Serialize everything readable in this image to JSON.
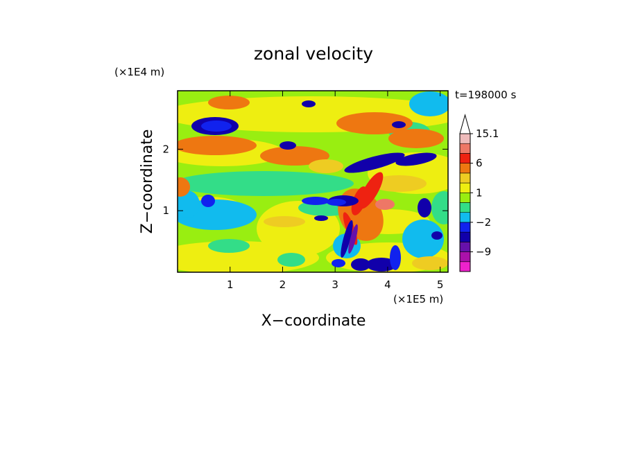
{
  "chart_data": {
    "type": "heatmap",
    "title": "zonal velocity",
    "xlabel": "X−coordinate",
    "ylabel": "Z−coordinate",
    "x_scale_label": "(×1E5 m)",
    "y_scale_label": "(×1E4 m)",
    "time_label": "t=198000 s",
    "xlim": [
      0,
      5.15
    ],
    "ylim": [
      0,
      2.95
    ],
    "x_ticks": [
      {
        "value": 1,
        "label": "1"
      },
      {
        "value": 2,
        "label": "2"
      },
      {
        "value": 3,
        "label": "3"
      },
      {
        "value": 4,
        "label": "4"
      },
      {
        "value": 5,
        "label": "5"
      }
    ],
    "y_ticks": [
      {
        "value": 1,
        "label": "1"
      },
      {
        "value": 2,
        "label": "2"
      }
    ],
    "colorbar": {
      "levels": [
        {
          "lower": -16,
          "upper": -12,
          "color": "#ee22cc"
        },
        {
          "lower": -12,
          "upper": -9,
          "color": "#aa11aa"
        },
        {
          "lower": -9,
          "upper": -6,
          "color": "#6611aa"
        },
        {
          "lower": -6,
          "upper": -4,
          "color": "#1100aa"
        },
        {
          "lower": -4,
          "upper": -2,
          "color": "#1122ee"
        },
        {
          "lower": -2,
          "upper": -1,
          "color": "#11bbee"
        },
        {
          "lower": -1,
          "upper": 0,
          "color": "#33dd88"
        },
        {
          "lower": 0,
          "upper": 1,
          "color": "#99ee11"
        },
        {
          "lower": 1,
          "upper": 2,
          "color": "#eeee11"
        },
        {
          "lower": 2,
          "upper": 3,
          "color": "#eecc22"
        },
        {
          "lower": 3,
          "upper": 6,
          "color": "#ee7711"
        },
        {
          "lower": 6,
          "upper": 9,
          "color": "#ee2211"
        },
        {
          "lower": 9,
          "upper": 12,
          "color": "#ee7766"
        },
        {
          "lower": 12,
          "upper": 15.1,
          "color": "#eebbbb"
        },
        {
          "lower": 15.1,
          "upper": 18,
          "color": "#ffffff"
        }
      ],
      "labels": [
        {
          "value": -9,
          "label": "−9"
        },
        {
          "value": -2,
          "label": "−2"
        },
        {
          "value": 1,
          "label": "1"
        },
        {
          "value": 6,
          "label": "6"
        },
        {
          "value": 15.1,
          "label": "15.1"
        }
      ]
    }
  }
}
